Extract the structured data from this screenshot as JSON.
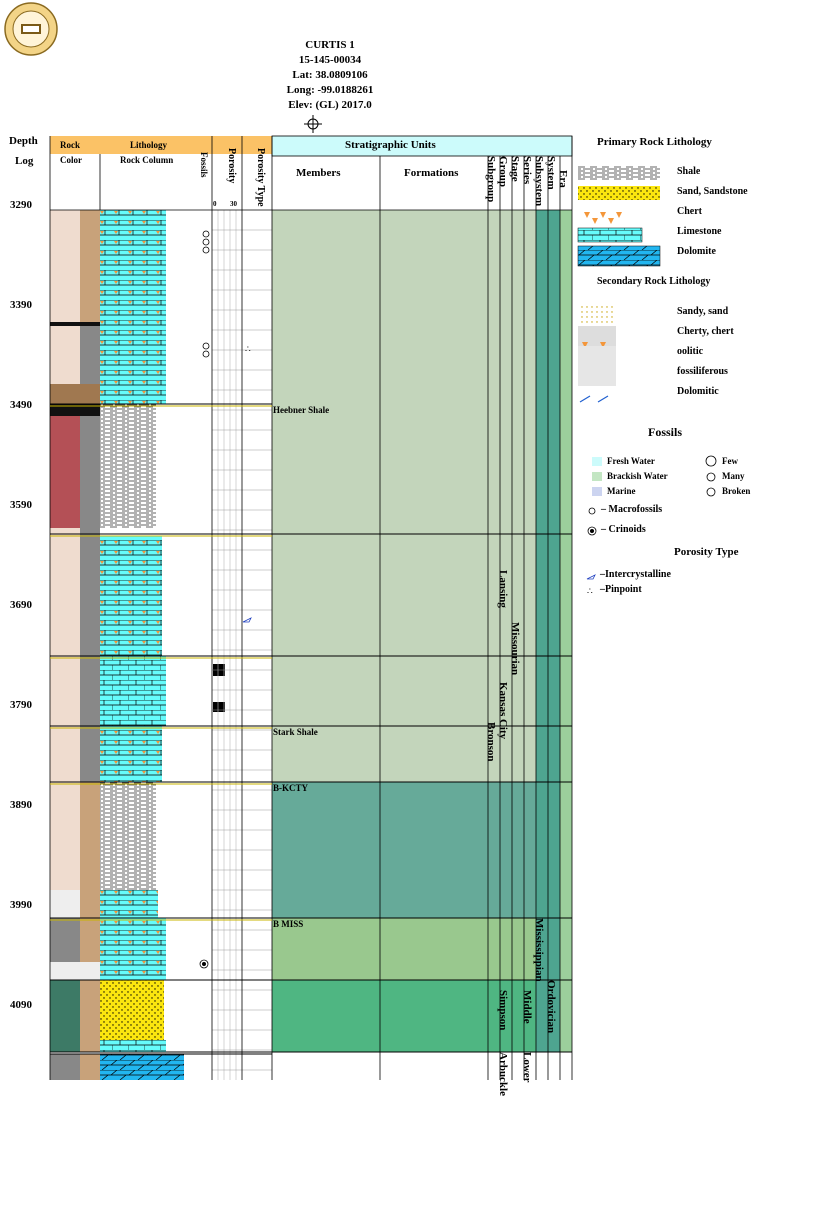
{
  "header": {
    "well_name": "CURTIS 1",
    "api": "15-145-00034",
    "lat": "Lat: 38.0809106",
    "long": "Long: -99.0188261",
    "elev": "Elev: (GL) 2017.0"
  },
  "columns": {
    "depth": "Depth",
    "log": "Log",
    "rock": "Rock",
    "color": "Color",
    "lithology": "Lithology",
    "rock_column": "Rock Column",
    "fossils": "Fossils",
    "porosity": "Porosity",
    "porosity_scale_min": "0",
    "porosity_scale_max": "30",
    "porosity_type": "Porosity Type",
    "strat_units": "Stratigraphic Units",
    "members": "Members",
    "formations": "Formations",
    "subgroup": "Subgroup",
    "group": "Group",
    "stage": "Stage",
    "series": "Series",
    "subsystem": "Subsystem",
    "system": "System",
    "era": "Era"
  },
  "depth_labels": [
    "3290",
    "3390",
    "3490",
    "3590",
    "3690",
    "3790",
    "3890",
    "3990",
    "4090"
  ],
  "members": {
    "heebner": "Heebner Shale",
    "stark": "Stark Shale",
    "bkcty": "B-KCTY",
    "bmiss": "B MISS"
  },
  "strat_labels": {
    "lansing": "Lansing",
    "missourian": "Missourian",
    "kansas_city": "Kansas City",
    "bronson": "Bronson",
    "mississippian": "Mississippian",
    "ordovician": "Ordovician",
    "simpson": "Simpson",
    "middle": "Middle",
    "arbuckle": "Arbuckle",
    "lower": "Lower"
  },
  "legend": {
    "primary_title": "Primary Rock Lithology",
    "shale": "Shale",
    "sand": "Sand, Sandstone",
    "chert": "Chert",
    "limestone": "Limestone",
    "dolomite": "Dolomite",
    "secondary_title": "Secondary Rock Lithology",
    "sandy": "Sandy, sand",
    "cherty": "Cherty, chert",
    "oolitic": "oolitic",
    "fossiliferous": "fossiliferous",
    "dolomitic": "Dolomitic",
    "fossils_title": "Fossils",
    "fresh_water": "Fresh Water",
    "brackish_water": "Brackish Water",
    "marine": "Marine",
    "few": "Few",
    "many": "Many",
    "broken": "Broken",
    "macrofossils": "– Macrofossils",
    "crinoids": "– Crinoids",
    "porosity_title": "Porosity Type",
    "intercrystalline": "–Intercrystalline",
    "pinpoint": "–Pinpoint"
  },
  "colors": {
    "header_orange": "#fbc266",
    "strat_header": "#ccfbfb",
    "limestone": "#66fbfb",
    "dolomite": "#22b6f0",
    "sand": "#fbe60f",
    "chert_mark": "#f4963a",
    "grey_pale": "#c3d5bb",
    "green_dark": "#66aa99",
    "green_mid": "#99c88e",
    "green_bright": "#4fb682",
    "system_teal": "#4ea590",
    "era_green": "#9ccf9c"
  }
}
